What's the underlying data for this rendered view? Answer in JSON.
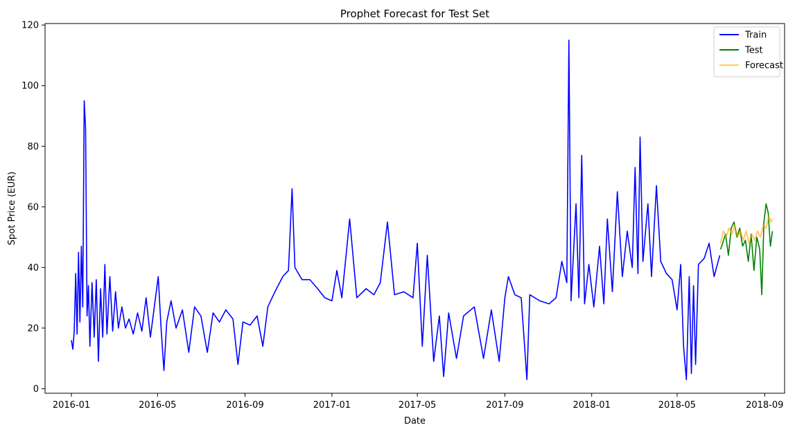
{
  "chart_data": {
    "type": "line",
    "title": "Prophet Forecast for Test Set",
    "xlabel": "Date",
    "ylabel": "Spot Price (EUR)",
    "xlim": [
      "2015-11-25",
      "2018-09-29"
    ],
    "ylim": [
      -1.5,
      120.5
    ],
    "x_ticks": [
      "2016-01",
      "2016-05",
      "2016-09",
      "2017-01",
      "2017-05",
      "2017-09",
      "2018-01",
      "2018-05",
      "2018-09"
    ],
    "y_ticks": [
      0,
      20,
      40,
      60,
      80,
      100,
      120
    ],
    "grid": false,
    "legend_position": "top-right",
    "series": [
      {
        "name": "Train",
        "color": "#0000ff",
        "points": [
          [
            "2016-01-01",
            16
          ],
          [
            "2016-01-03",
            13
          ],
          [
            "2016-01-05",
            19
          ],
          [
            "2016-01-07",
            38
          ],
          [
            "2016-01-09",
            18
          ],
          [
            "2016-01-11",
            45
          ],
          [
            "2016-01-13",
            22
          ],
          [
            "2016-01-15",
            47
          ],
          [
            "2016-01-17",
            27
          ],
          [
            "2016-01-19",
            95
          ],
          [
            "2016-01-21",
            86
          ],
          [
            "2016-01-23",
            24
          ],
          [
            "2016-01-25",
            34
          ],
          [
            "2016-01-27",
            14
          ],
          [
            "2016-01-30",
            35
          ],
          [
            "2016-02-02",
            17
          ],
          [
            "2016-02-05",
            36
          ],
          [
            "2016-02-08",
            9
          ],
          [
            "2016-02-11",
            33
          ],
          [
            "2016-02-14",
            17
          ],
          [
            "2016-02-17",
            41
          ],
          [
            "2016-02-20",
            18
          ],
          [
            "2016-02-24",
            37
          ],
          [
            "2016-02-28",
            19
          ],
          [
            "2016-03-03",
            32
          ],
          [
            "2016-03-07",
            20
          ],
          [
            "2016-03-12",
            27
          ],
          [
            "2016-03-17",
            20
          ],
          [
            "2016-03-22",
            23
          ],
          [
            "2016-03-28",
            18
          ],
          [
            "2016-04-03",
            25
          ],
          [
            "2016-04-09",
            19
          ],
          [
            "2016-04-15",
            30
          ],
          [
            "2016-04-21",
            17
          ],
          [
            "2016-04-27",
            28
          ],
          [
            "2016-05-02",
            37
          ],
          [
            "2016-05-06",
            20
          ],
          [
            "2016-05-10",
            6
          ],
          [
            "2016-05-14",
            22
          ],
          [
            "2016-05-20",
            29
          ],
          [
            "2016-05-27",
            20
          ],
          [
            "2016-06-05",
            26
          ],
          [
            "2016-06-14",
            12
          ],
          [
            "2016-06-22",
            27
          ],
          [
            "2016-07-01",
            24
          ],
          [
            "2016-07-10",
            12
          ],
          [
            "2016-07-18",
            25
          ],
          [
            "2016-07-27",
            22
          ],
          [
            "2016-08-05",
            26
          ],
          [
            "2016-08-15",
            23
          ],
          [
            "2016-08-22",
            8
          ],
          [
            "2016-08-29",
            22
          ],
          [
            "2016-09-08",
            21
          ],
          [
            "2016-09-18",
            24
          ],
          [
            "2016-09-26",
            14
          ],
          [
            "2016-10-03",
            27
          ],
          [
            "2016-10-13",
            32
          ],
          [
            "2016-10-24",
            37
          ],
          [
            "2016-11-01",
            39
          ],
          [
            "2016-11-06",
            66
          ],
          [
            "2016-11-10",
            40
          ],
          [
            "2016-11-20",
            36
          ],
          [
            "2016-12-01",
            36
          ],
          [
            "2016-12-12",
            33
          ],
          [
            "2016-12-22",
            30
          ],
          [
            "2017-01-01",
            29
          ],
          [
            "2017-01-08",
            39
          ],
          [
            "2017-01-15",
            30
          ],
          [
            "2017-01-26",
            56
          ],
          [
            "2017-02-05",
            30
          ],
          [
            "2017-02-18",
            33
          ],
          [
            "2017-03-01",
            31
          ],
          [
            "2017-03-10",
            35
          ],
          [
            "2017-03-20",
            55
          ],
          [
            "2017-03-30",
            31
          ],
          [
            "2017-04-12",
            32
          ],
          [
            "2017-04-25",
            30
          ],
          [
            "2017-05-01",
            48
          ],
          [
            "2017-05-08",
            14
          ],
          [
            "2017-05-15",
            44
          ],
          [
            "2017-05-24",
            9
          ],
          [
            "2017-06-01",
            24
          ],
          [
            "2017-06-07",
            4
          ],
          [
            "2017-06-14",
            25
          ],
          [
            "2017-06-25",
            10
          ],
          [
            "2017-07-05",
            24
          ],
          [
            "2017-07-20",
            27
          ],
          [
            "2017-08-02",
            10
          ],
          [
            "2017-08-13",
            26
          ],
          [
            "2017-08-24",
            9
          ],
          [
            "2017-09-01",
            30
          ],
          [
            "2017-09-06",
            37
          ],
          [
            "2017-09-15",
            31
          ],
          [
            "2017-09-24",
            30
          ],
          [
            "2017-10-02",
            3
          ],
          [
            "2017-10-06",
            31
          ],
          [
            "2017-10-20",
            29
          ],
          [
            "2017-11-02",
            28
          ],
          [
            "2017-11-12",
            30
          ],
          [
            "2017-11-20",
            42
          ],
          [
            "2017-11-27",
            35
          ],
          [
            "2017-11-30",
            115
          ],
          [
            "2017-12-03",
            29
          ],
          [
            "2017-12-10",
            61
          ],
          [
            "2017-12-14",
            30
          ],
          [
            "2017-12-18",
            77
          ],
          [
            "2017-12-22",
            28
          ],
          [
            "2017-12-28",
            41
          ],
          [
            "2018-01-04",
            27
          ],
          [
            "2018-01-12",
            47
          ],
          [
            "2018-01-18",
            28
          ],
          [
            "2018-01-23",
            56
          ],
          [
            "2018-01-30",
            32
          ],
          [
            "2018-02-06",
            65
          ],
          [
            "2018-02-13",
            37
          ],
          [
            "2018-02-20",
            52
          ],
          [
            "2018-02-27",
            40
          ],
          [
            "2018-03-03",
            73
          ],
          [
            "2018-03-07",
            38
          ],
          [
            "2018-03-10",
            83
          ],
          [
            "2018-03-14",
            42
          ],
          [
            "2018-03-21",
            61
          ],
          [
            "2018-03-26",
            37
          ],
          [
            "2018-04-02",
            67
          ],
          [
            "2018-04-08",
            42
          ],
          [
            "2018-04-16",
            38
          ],
          [
            "2018-04-24",
            36
          ],
          [
            "2018-05-01",
            26
          ],
          [
            "2018-05-06",
            41
          ],
          [
            "2018-05-10",
            14
          ],
          [
            "2018-05-14",
            3
          ],
          [
            "2018-05-18",
            37
          ],
          [
            "2018-05-21",
            5
          ],
          [
            "2018-05-24",
            34
          ],
          [
            "2018-05-27",
            8
          ],
          [
            "2018-05-31",
            41
          ],
          [
            "2018-06-08",
            43
          ],
          [
            "2018-06-15",
            48
          ],
          [
            "2018-06-22",
            37
          ],
          [
            "2018-06-30",
            44
          ]
        ]
      },
      {
        "name": "Test",
        "color": "#008000",
        "points": [
          [
            "2018-07-01",
            46
          ],
          [
            "2018-07-04",
            48
          ],
          [
            "2018-07-08",
            51
          ],
          [
            "2018-07-12",
            44
          ],
          [
            "2018-07-16",
            53
          ],
          [
            "2018-07-20",
            55
          ],
          [
            "2018-07-24",
            50
          ],
          [
            "2018-07-28",
            53
          ],
          [
            "2018-08-01",
            47
          ],
          [
            "2018-08-05",
            49
          ],
          [
            "2018-08-09",
            42
          ],
          [
            "2018-08-13",
            51
          ],
          [
            "2018-08-17",
            39
          ],
          [
            "2018-08-21",
            50
          ],
          [
            "2018-08-25",
            46
          ],
          [
            "2018-08-28",
            31
          ],
          [
            "2018-08-31",
            55
          ],
          [
            "2018-09-03",
            61
          ],
          [
            "2018-09-06",
            58
          ],
          [
            "2018-09-09",
            47
          ],
          [
            "2018-09-12",
            52
          ]
        ]
      },
      {
        "name": "Forecast",
        "color": "#ffa500",
        "points": [
          [
            "2018-07-01",
            48
          ],
          [
            "2018-07-05",
            52
          ],
          [
            "2018-07-09",
            50
          ],
          [
            "2018-07-13",
            53
          ],
          [
            "2018-07-17",
            51
          ],
          [
            "2018-07-21",
            54
          ],
          [
            "2018-07-25",
            50
          ],
          [
            "2018-07-29",
            52
          ],
          [
            "2018-08-02",
            49
          ],
          [
            "2018-08-06",
            52
          ],
          [
            "2018-08-10",
            48
          ],
          [
            "2018-08-14",
            51
          ],
          [
            "2018-08-18",
            49
          ],
          [
            "2018-08-22",
            52
          ],
          [
            "2018-08-26",
            50
          ],
          [
            "2018-08-30",
            54
          ],
          [
            "2018-09-03",
            53
          ],
          [
            "2018-09-07",
            57
          ],
          [
            "2018-09-10",
            55
          ],
          [
            "2018-09-12",
            56
          ]
        ]
      }
    ]
  }
}
